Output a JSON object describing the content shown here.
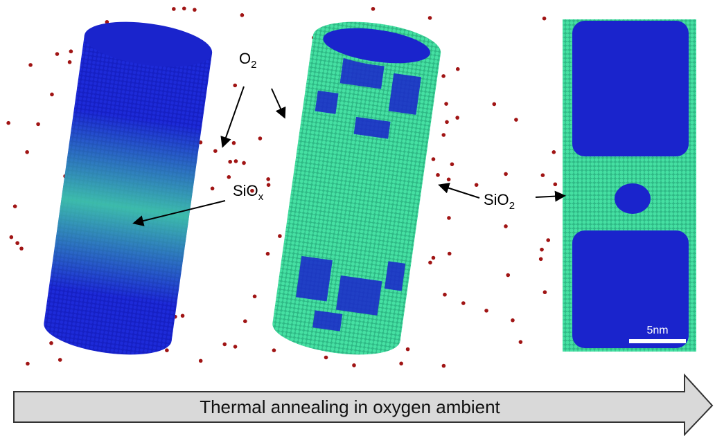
{
  "labels": {
    "o2": {
      "base": "O",
      "sub": "2"
    },
    "siox": {
      "base": "SiO",
      "sub": "x"
    },
    "sio2": {
      "base": "SiO",
      "sub": "2"
    },
    "scale_bar": "5nm"
  },
  "arrow_caption": "Thermal annealing in oxygen ambient"
}
